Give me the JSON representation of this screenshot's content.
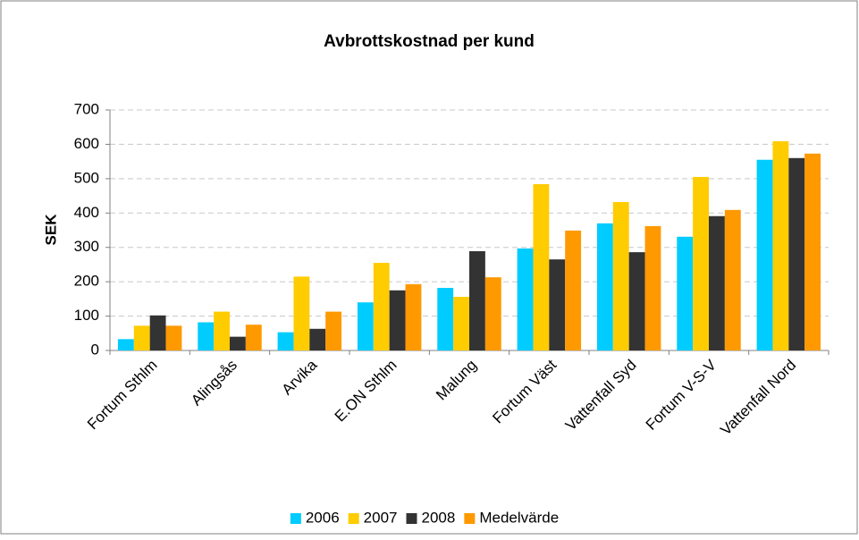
{
  "chart_data": {
    "type": "bar",
    "title": "Avbrottskostnad per kund",
    "ylabel": "SEK",
    "categories": [
      "Fortum Sthlm",
      "Alingsås",
      "Arvika",
      "E.ON Sthlm",
      "Malung",
      "Fortum Väst",
      "Vattenfall Syd",
      "Fortum V-S-V",
      "Vattenfall Nord"
    ],
    "series": [
      {
        "name": "2006",
        "color": "#00ccff",
        "values": [
          33,
          82,
          53,
          140,
          182,
          297,
          370,
          331,
          555
        ]
      },
      {
        "name": "2007",
        "color": "#ffcc00",
        "values": [
          72,
          113,
          215,
          255,
          156,
          484,
          432,
          505,
          609
        ]
      },
      {
        "name": "2008",
        "color": "#333333",
        "values": [
          102,
          40,
          63,
          175,
          289,
          265,
          286,
          391,
          560
        ]
      },
      {
        "name": "Medelvärde",
        "color": "#ff9900",
        "values": [
          72,
          75,
          113,
          193,
          213,
          349,
          362,
          409,
          573
        ]
      }
    ],
    "ylim": [
      0,
      700
    ],
    "yticks": [
      0,
      100,
      200,
      300,
      400,
      500,
      600,
      700
    ],
    "grid": true,
    "legend": "bottom"
  }
}
